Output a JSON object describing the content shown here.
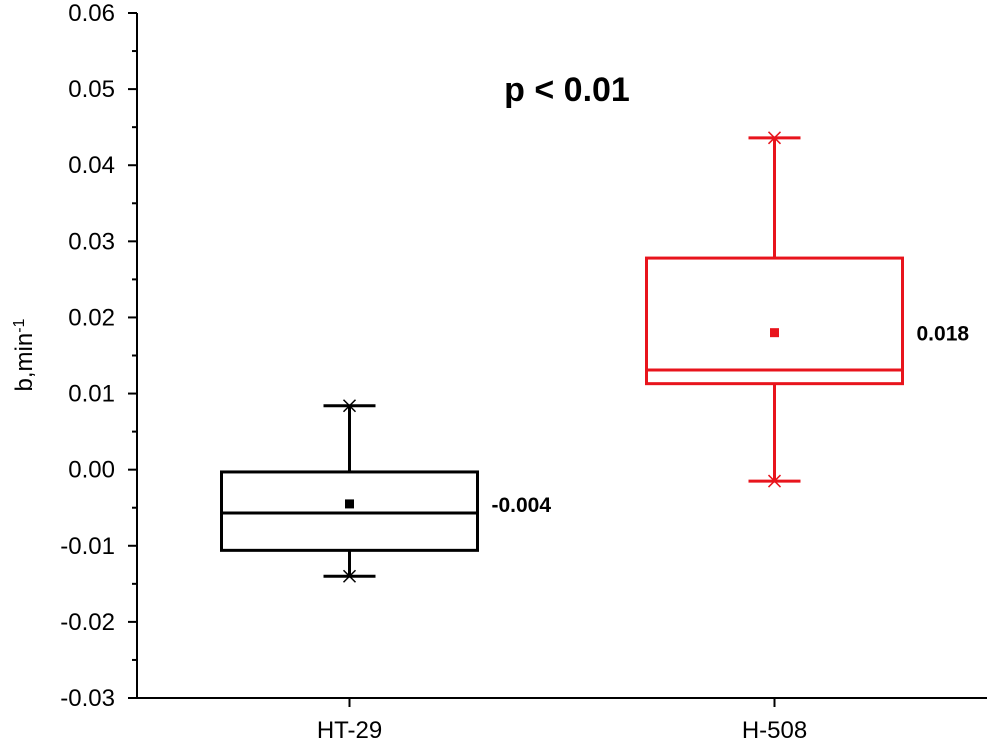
{
  "chart_data": {
    "type": "box",
    "title": "",
    "annotation": "p < 0.01",
    "xlabel": "",
    "ylabel": "b,min",
    "ylabel_superscript": "-1",
    "ylim": [
      -0.03,
      0.06
    ],
    "yticks": [
      "-0.03",
      "-0.02",
      "-0.01",
      "0.00",
      "0.01",
      "0.02",
      "0.03",
      "0.04",
      "0.05",
      "0.06"
    ],
    "categories": [
      "HT-29",
      "H-508"
    ],
    "boxes": [
      {
        "category": "HT-29",
        "color": "#000000",
        "whisker_low": -0.014,
        "q1": -0.0106,
        "median": -0.0057,
        "q3": -0.0003,
        "whisker_high": 0.0084,
        "mean": -0.0045,
        "mean_label": "-0.004"
      },
      {
        "category": "H-508",
        "color": "#e8141c",
        "whisker_low": -0.0015,
        "q1": 0.0113,
        "median": 0.0131,
        "q3": 0.0278,
        "whisker_high": 0.0436,
        "mean": 0.018,
        "mean_label": "0.018"
      }
    ],
    "grid": false,
    "legend": "none"
  }
}
